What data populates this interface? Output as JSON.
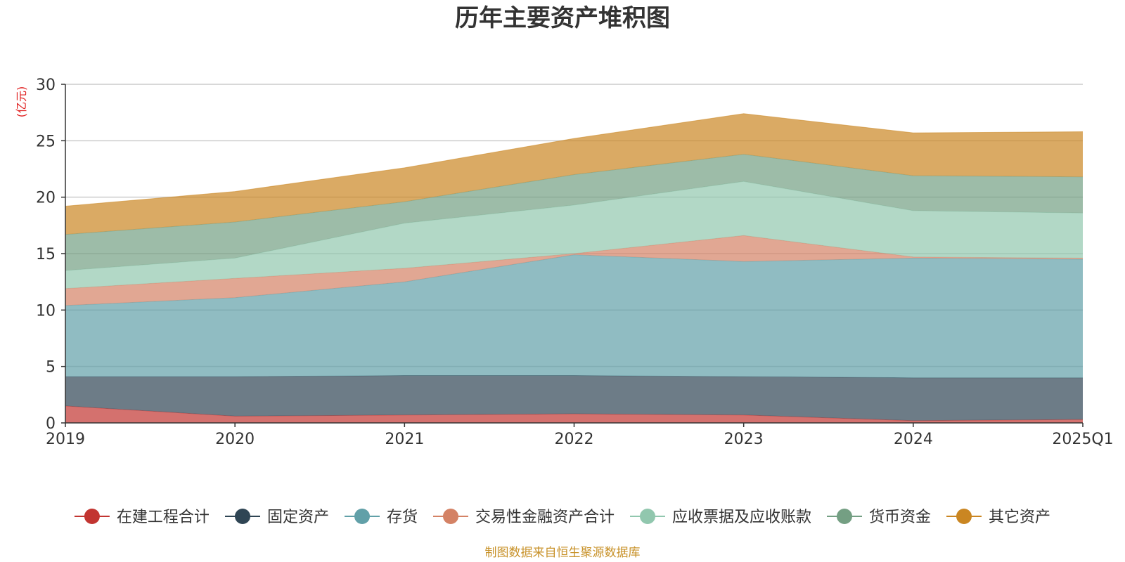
{
  "chart_data": {
    "type": "area",
    "stacked": true,
    "title": "历年主要资产堆积图",
    "ylabel": "(亿元)",
    "xlabel": "",
    "categories": [
      "2019",
      "2020",
      "2021",
      "2022",
      "2023",
      "2024",
      "2025Q1"
    ],
    "ylim": [
      0,
      30
    ],
    "yticks": [
      0,
      5,
      10,
      15,
      20,
      25,
      30
    ],
    "grid": true,
    "legend_position": "bottom",
    "series": [
      {
        "name": "在建工程合计",
        "color": "#c23531",
        "values": [
          1.5,
          0.6,
          0.7,
          0.8,
          0.7,
          0.2,
          0.3
        ]
      },
      {
        "name": "固定资产",
        "color": "#2f4554",
        "values": [
          2.6,
          3.5,
          3.5,
          3.4,
          3.4,
          3.8,
          3.7
        ]
      },
      {
        "name": "存货",
        "color": "#61a0a8",
        "values": [
          6.3,
          7.0,
          8.3,
          10.7,
          10.2,
          10.6,
          10.5
        ]
      },
      {
        "name": "交易性金融资产合计",
        "color": "#d48265",
        "values": [
          1.5,
          1.7,
          1.2,
          0.1,
          2.3,
          0.1,
          0.1
        ]
      },
      {
        "name": "应收票据及应收账款",
        "color": "#91c7ae",
        "values": [
          1.6,
          1.8,
          4.0,
          4.3,
          4.8,
          4.1,
          4.0
        ]
      },
      {
        "name": "货币资金",
        "color": "#749f83",
        "values": [
          3.2,
          3.2,
          1.9,
          2.7,
          2.4,
          3.1,
          3.2
        ]
      },
      {
        "name": "其它资产",
        "color": "#ca8622",
        "values": [
          2.5,
          2.7,
          3.0,
          3.2,
          3.6,
          3.8,
          4.0
        ]
      }
    ]
  },
  "footer": {
    "source": "制图数据来自恒生聚源数据库"
  }
}
